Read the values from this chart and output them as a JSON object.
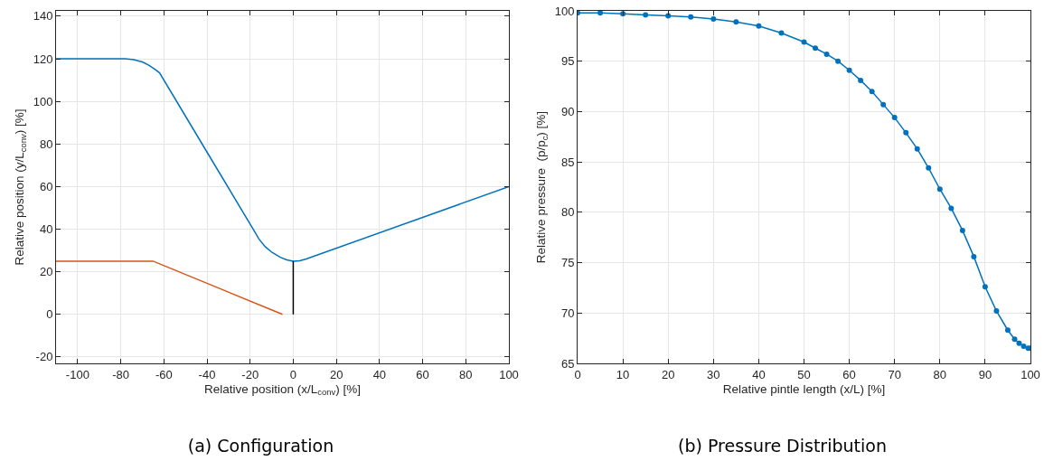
{
  "chart_data": [
    {
      "type": "line",
      "title": "(a) Configuration",
      "xlabel": "Relative position (x/L$_{conv}$) [%]",
      "ylabel": "Relative position (y/L$_{conv}$) [%]",
      "xlim": [
        -110,
        100
      ],
      "ylim": [
        -23,
        142.5
      ],
      "xticks": [
        -100,
        -80,
        -60,
        -40,
        -20,
        0,
        20,
        40,
        60,
        80,
        100
      ],
      "yticks": [
        -20,
        0,
        20,
        40,
        60,
        80,
        100,
        120,
        140
      ],
      "grid": true,
      "marker": "none",
      "line_style": "solid",
      "series": [
        {
          "color": "#0072bd",
          "x": [
            -110,
            -78,
            -74,
            -70,
            -67,
            -64,
            -62,
            -40,
            -20,
            -18,
            -16,
            -13,
            -10,
            -6,
            -3,
            0,
            3,
            6,
            100
          ],
          "values": [
            120,
            120,
            119.6,
            118.5,
            117,
            115,
            113.4,
            76.2,
            42.4,
            39,
            35.5,
            31.8,
            29.2,
            26.8,
            25.6,
            25,
            25.2,
            26,
            60
          ]
        },
        {
          "color": "#d95319",
          "x": [
            -110,
            -65,
            -5
          ],
          "values": [
            25,
            25,
            0
          ]
        },
        {
          "color": "#000000",
          "x": [
            0,
            0
          ],
          "values": [
            0,
            25
          ]
        }
      ]
    },
    {
      "type": "line",
      "title": "(b) Pressure Distribution",
      "xlabel": "Relative pintle length (x/L) [%]",
      "ylabel": "Relative pressure  (p/p$_{c}$) [%]",
      "xlim": [
        0,
        100
      ],
      "ylim": [
        65,
        100
      ],
      "xticks": [
        0,
        10,
        20,
        30,
        40,
        50,
        60,
        70,
        80,
        90,
        100
      ],
      "yticks": [
        65,
        70,
        75,
        80,
        85,
        90,
        95,
        100
      ],
      "grid": true,
      "marker": "circle",
      "line_style": "solid",
      "series": [
        {
          "color": "#0072bd",
          "x": [
            0,
            5,
            10,
            15,
            20,
            25,
            30,
            35,
            40,
            45,
            50,
            52.5,
            55,
            57.5,
            60,
            62.5,
            65,
            67.5,
            70,
            72.5,
            75,
            77.5,
            80,
            82.5,
            85,
            87.5,
            90,
            92.5,
            95,
            96.5,
            97.5,
            98.5,
            99.5,
            100
          ],
          "values": [
            99.8,
            99.8,
            99.7,
            99.6,
            99.5,
            99.4,
            99.2,
            98.9,
            98.5,
            97.8,
            96.9,
            96.3,
            95.7,
            95.0,
            94.1,
            93.1,
            92.0,
            90.7,
            89.4,
            87.9,
            86.3,
            84.4,
            82.3,
            80.4,
            78.2,
            75.6,
            72.6,
            70.2,
            68.3,
            67.4,
            67.0,
            66.7,
            66.5,
            66.5
          ]
        }
      ]
    }
  ]
}
